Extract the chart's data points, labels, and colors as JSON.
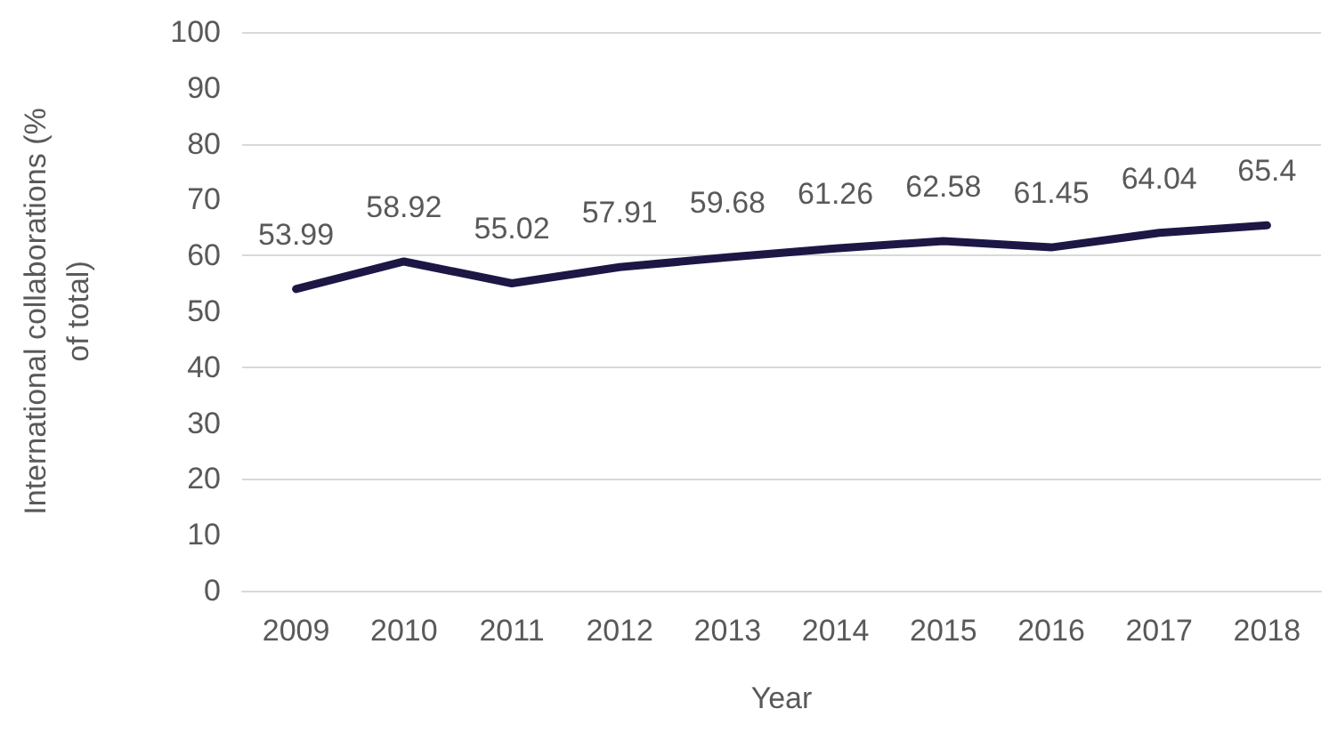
{
  "chart_data": {
    "type": "line",
    "xlabel": "Year",
    "ylabel": "International collaborations (% of total)",
    "categories": [
      "2009",
      "2010",
      "2011",
      "2012",
      "2013",
      "2014",
      "2015",
      "2016",
      "2017",
      "2018"
    ],
    "series": [
      {
        "color": "#1c1745",
        "values": [
          53.99,
          58.92,
          55.02,
          57.91,
          59.68,
          61.26,
          62.58,
          61.45,
          64.04,
          65.4
        ]
      }
    ],
    "ylim": [
      0,
      100
    ],
    "yticks": [
      0,
      10,
      20,
      30,
      40,
      50,
      60,
      70,
      80,
      90,
      100
    ],
    "grid": "y",
    "marker": "none",
    "line_style": "solid",
    "data_labels": true
  }
}
